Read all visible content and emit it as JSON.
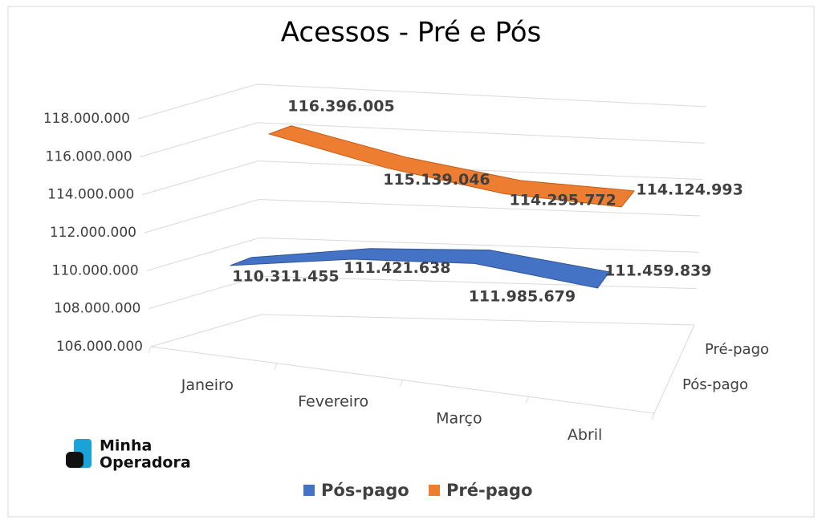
{
  "chart_data": {
    "type": "line3d",
    "title": "Acessos - Pré e Pós",
    "categories": [
      "Janeiro",
      "Fevereiro",
      "Março",
      "Abril"
    ],
    "series": [
      {
        "name": "Pós-pago",
        "color": "#4472c4",
        "values": [
          110311455,
          111421638,
          111985679,
          111459839
        ],
        "value_labels": [
          "110.311.455",
          "111.421.638",
          "111.985.679",
          "111.459.839"
        ]
      },
      {
        "name": "Pré-pago",
        "color": "#ed7d31",
        "values": [
          116396005,
          115139046,
          114295772,
          114124993
        ],
        "value_labels": [
          "116.396.005",
          "115.139.046",
          "114.295.772",
          "114.124.993"
        ]
      }
    ],
    "ylim": [
      106000000,
      118000000
    ],
    "yticks": [
      {
        "value": 106000000,
        "label": "106.000.000"
      },
      {
        "value": 108000000,
        "label": "108.000.000"
      },
      {
        "value": 110000000,
        "label": "110.000.000"
      },
      {
        "value": 112000000,
        "label": "112.000.000"
      },
      {
        "value": 114000000,
        "label": "114.000.000"
      },
      {
        "value": 116000000,
        "label": "116.000.000"
      },
      {
        "value": 118000000,
        "label": "118.000.000"
      }
    ],
    "grid": true,
    "legend": "bottom"
  },
  "logo": {
    "line1": "Minha",
    "line2": "Operadora"
  }
}
